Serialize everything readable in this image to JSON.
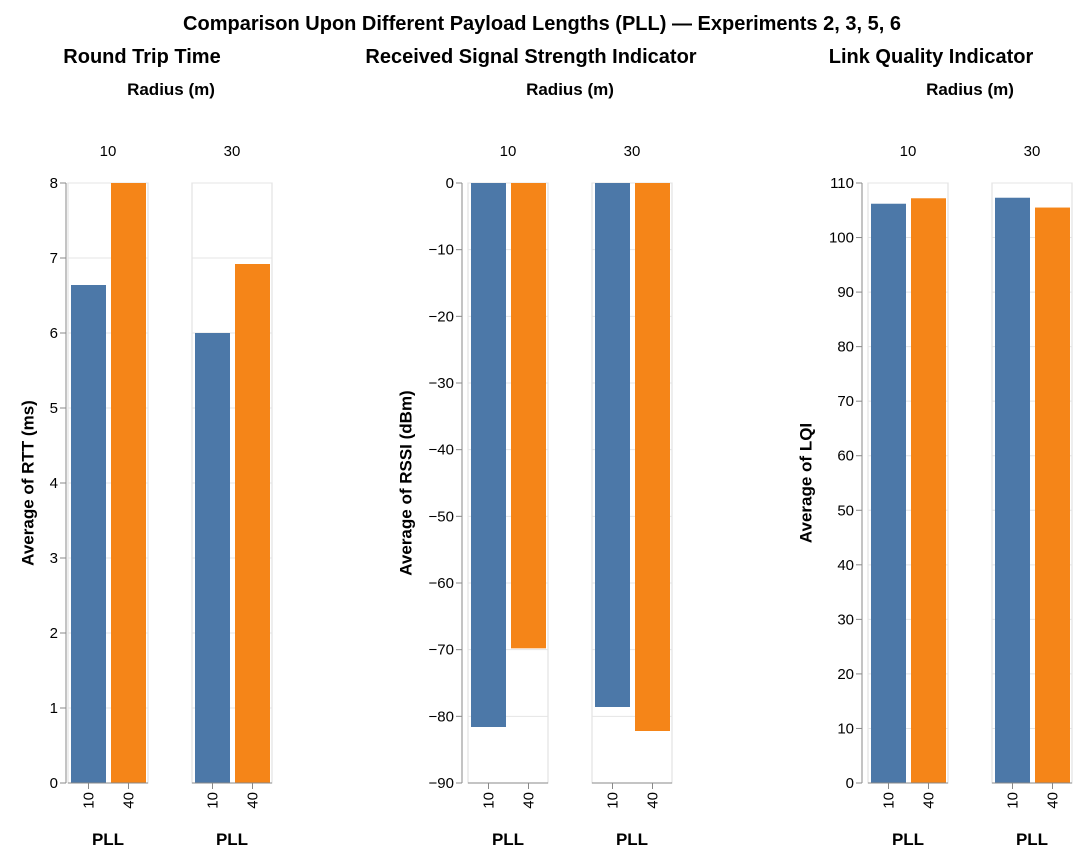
{
  "title": "Comparison Upon Different Payload Lengths (PLL) — Experiments 2, 3, 5, 6",
  "series_colors": {
    "10": "#4c78a8",
    "40": "#f58518"
  },
  "chart_data": [
    {
      "type": "bar",
      "title": "Round Trip Time",
      "facet_label": "Radius (m)",
      "facets": [
        "10",
        "30"
      ],
      "categories": [
        "10",
        "40"
      ],
      "xlabel": "PLL",
      "ylabel": "Average of RTT (ms)",
      "ylim": [
        0,
        8
      ],
      "yticks": [
        0,
        1,
        2,
        3,
        4,
        5,
        6,
        7,
        8
      ],
      "values": {
        "10": [
          6.64,
          8.0
        ],
        "30": [
          6.0,
          6.92
        ]
      },
      "grid": true
    },
    {
      "type": "bar",
      "title": "Received Signal Strength Indicator",
      "facet_label": "Radius (m)",
      "facets": [
        "10",
        "30"
      ],
      "categories": [
        "10",
        "40"
      ],
      "xlabel": "PLL",
      "ylabel": "Average of RSSI (dBm)",
      "ylim": [
        -90,
        0
      ],
      "yticks": [
        0,
        -10,
        -20,
        -30,
        -40,
        -50,
        -60,
        -70,
        -80,
        -90
      ],
      "values": {
        "10": [
          -81.6,
          -69.8
        ],
        "30": [
          -78.6,
          -82.2
        ]
      },
      "grid": true
    },
    {
      "type": "bar",
      "title": "Link Quality Indicator",
      "facet_label": "Radius (m)",
      "facets": [
        "10",
        "30"
      ],
      "categories": [
        "10",
        "40"
      ],
      "xlabel": "PLL",
      "ylabel": "Average of LQI",
      "ylim": [
        0,
        110
      ],
      "yticks": [
        0,
        10,
        20,
        30,
        40,
        50,
        60,
        70,
        80,
        90,
        100,
        110
      ],
      "values": {
        "10": [
          106.2,
          107.2
        ],
        "30": [
          107.3,
          105.5
        ]
      },
      "grid": true
    }
  ]
}
